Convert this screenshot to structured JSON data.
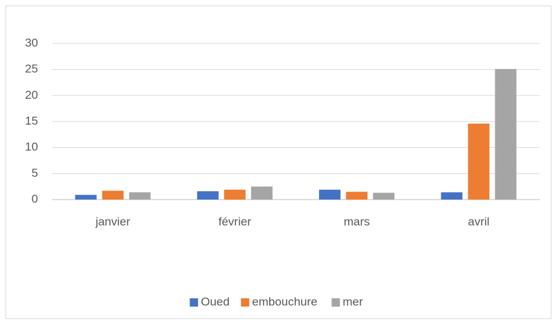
{
  "chart_data": {
    "type": "bar",
    "categories": [
      "janvier",
      "février",
      "mars",
      "avril"
    ],
    "series": [
      {
        "name": "Oued",
        "color": "#4472c4",
        "values": [
          0.9,
          1.6,
          1.9,
          1.4
        ]
      },
      {
        "name": "embouchure",
        "color": "#ed7d31",
        "values": [
          1.7,
          1.9,
          1.5,
          14.6
        ]
      },
      {
        "name": "mer",
        "color": "#a5a5a5",
        "values": [
          1.4,
          2.5,
          1.3,
          25.1
        ]
      }
    ],
    "ylim": [
      0,
      30
    ],
    "yticks": [
      0,
      5,
      10,
      15,
      20,
      25,
      30
    ],
    "grid": true,
    "legend": "bottom"
  }
}
